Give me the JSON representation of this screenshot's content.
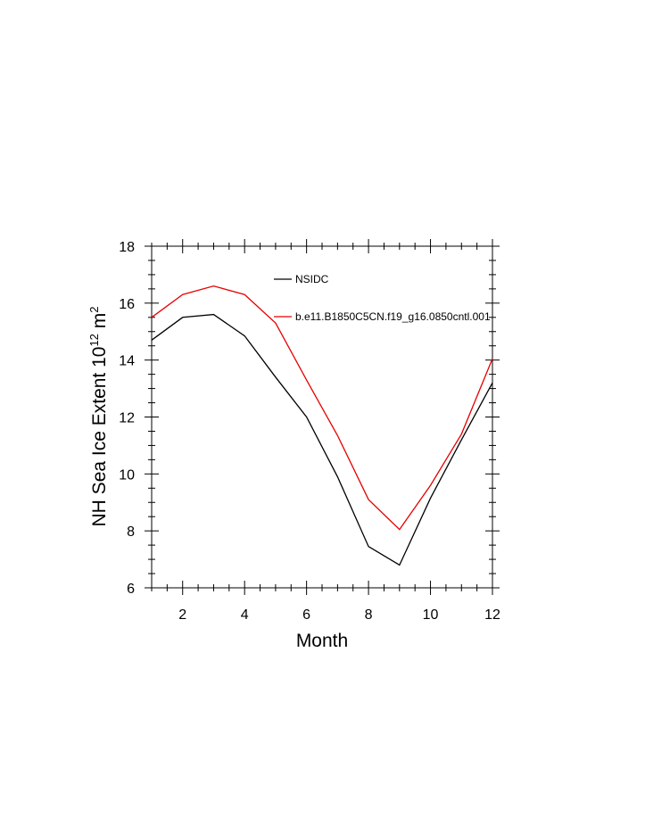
{
  "chart_data": {
    "type": "line",
    "title": "",
    "xlabel": "Month",
    "ylabel": {
      "prefix": "NH Sea Ice Extent 10",
      "exponent": "12",
      "unit": " m",
      "unit_exponent": "2"
    },
    "xlim": [
      1,
      12
    ],
    "ylim": [
      6,
      18
    ],
    "x_ticks": [
      2,
      4,
      6,
      8,
      10,
      12
    ],
    "y_ticks": [
      6,
      8,
      10,
      12,
      14,
      16,
      18
    ],
    "grid": false,
    "legend_position": "top-center",
    "x": [
      1,
      2,
      3,
      4,
      5,
      6,
      7,
      8,
      9,
      10,
      11,
      12
    ],
    "series": [
      {
        "name": "NSIDC",
        "color": "#000000",
        "values": [
          14.7,
          15.5,
          15.6,
          14.85,
          13.4,
          12.0,
          9.9,
          7.45,
          6.8,
          9.15,
          11.2,
          13.2
        ]
      },
      {
        "name": "b.e11.B1850C5CN.f19_g16.0850cntl.001",
        "color": "#e60000",
        "values": [
          15.5,
          16.3,
          16.6,
          16.3,
          15.3,
          13.3,
          11.35,
          9.1,
          8.05,
          9.6,
          11.4,
          14.05
        ]
      }
    ]
  }
}
